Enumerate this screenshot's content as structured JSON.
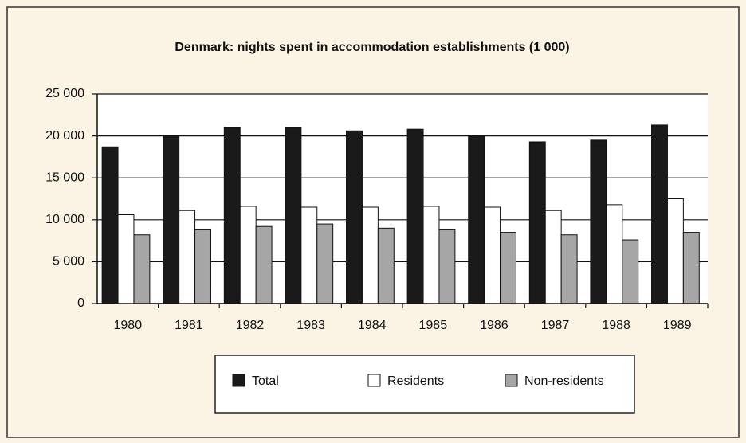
{
  "chart_data": {
    "type": "bar",
    "title": "Denmark: nights spent in accommodation establishments (1 000)",
    "categories": [
      "1980",
      "1981",
      "1982",
      "1983",
      "1984",
      "1985",
      "1986",
      "1987",
      "1988",
      "1989"
    ],
    "series": [
      {
        "name": "Total",
        "color": "#1a1a1a",
        "values": [
          18700,
          20000,
          21000,
          21000,
          20600,
          20800,
          20000,
          19300,
          19500,
          21300
        ]
      },
      {
        "name": "Residents",
        "color": "#ffffff",
        "values": [
          10600,
          11100,
          11600,
          11500,
          11500,
          11600,
          11500,
          11100,
          11800,
          12500
        ]
      },
      {
        "name": "Non-residents",
        "color": "#a6a6a6",
        "values": [
          8200,
          8800,
          9200,
          9500,
          9000,
          8800,
          8500,
          8200,
          7600,
          8500
        ]
      }
    ],
    "ylim": [
      0,
      25000
    ],
    "yticks": [
      0,
      {
        "value": 5000,
        "label": "5 000"
      },
      {
        "value": 10000,
        "label": "10 000"
      },
      {
        "value": 15000,
        "label": "15 000"
      },
      {
        "value": 20000,
        "label": "20 000"
      },
      {
        "value": 25000,
        "label": "25 000"
      }
    ],
    "grid": true,
    "legend": "bottom"
  }
}
